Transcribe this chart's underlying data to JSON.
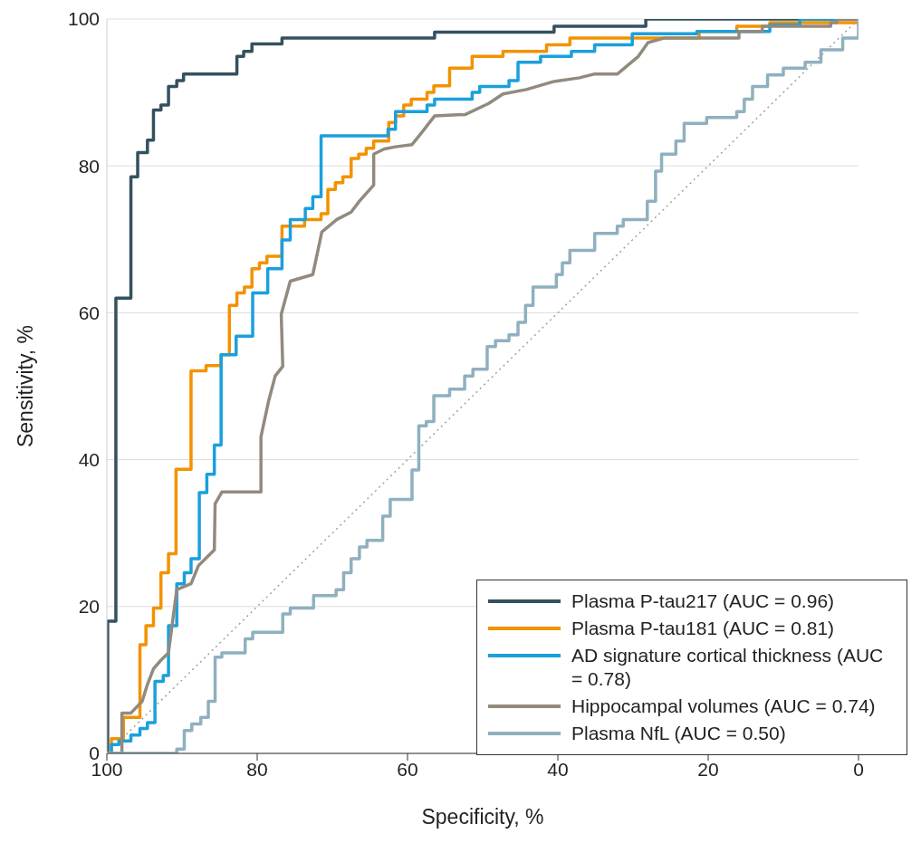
{
  "chart_data": {
    "type": "line",
    "xlabel": "Specificity, %",
    "ylabel": "Sensitivity, %",
    "xlim": [
      100,
      0
    ],
    "ylim": [
      0,
      100
    ],
    "xticks": [
      100,
      80,
      60,
      40,
      20,
      0
    ],
    "yticks": [
      0,
      20,
      40,
      60,
      80,
      100
    ],
    "grid": "y",
    "legend": "bottom right",
    "marker": "none",
    "line_style": "solid",
    "series": [
      {
        "color": "#a0a0a0",
        "line_style": "dotted",
        "x": [
          100,
          0
        ],
        "values": [
          0,
          100
        ]
      },
      {
        "name": "Plasma P-tau217 (AUC = 0.96)",
        "color": "#34515e",
        "x": [
          100,
          99.9,
          99.9,
          98.8,
          98.8,
          96.8,
          96.8,
          95.9,
          95.9,
          94.6,
          94.6,
          93.8,
          93.8,
          92.8,
          92.8,
          91.8,
          91.8,
          90.7,
          90.7,
          89.8,
          89.8,
          82.7,
          82.7,
          81.8,
          81.8,
          80.7,
          80.7,
          76.7,
          76.7,
          56.4,
          56.4,
          40.5,
          40.5,
          28.3,
          28.3,
          0
        ],
        "values": [
          0,
          0,
          18,
          18,
          62,
          62,
          78.5,
          78.5,
          81.8,
          81.8,
          83.5,
          83.5,
          87.6,
          87.6,
          88.3,
          88.3,
          90.8,
          90.8,
          91.6,
          91.6,
          92.5,
          92.5,
          94.9,
          94.9,
          95.6,
          95.6,
          96.6,
          96.6,
          97.4,
          97.4,
          98.2,
          98.2,
          99,
          99,
          100,
          100
        ]
      },
      {
        "name": "Plasma P-tau181 (AUC = 0.81)",
        "color": "#f39200",
        "x": [
          100,
          99.4,
          99.4,
          97.8,
          97.8,
          95.6,
          95.6,
          94.8,
          94.8,
          93.8,
          93.8,
          92.8,
          92.8,
          91.8,
          91.8,
          90.8,
          90.8,
          88.8,
          88.8,
          86.8,
          86.8,
          84.8,
          84.8,
          83.7,
          83.7,
          82.7,
          82.7,
          81.7,
          81.7,
          80.7,
          80.7,
          79.7,
          79.7,
          78.7,
          78.7,
          76.7,
          76.7,
          73.7,
          73.7,
          71.5,
          71.5,
          70.6,
          70.6,
          69.6,
          69.6,
          68.6,
          68.6,
          67.5,
          67.5,
          66.5,
          66.5,
          65.5,
          65.5,
          64.5,
          64.5,
          62.5,
          62.5,
          61.6,
          61.6,
          60.5,
          60.5,
          59.5,
          59.5,
          57.4,
          57.4,
          56.5,
          56.5,
          54.4,
          54.4,
          51.4,
          51.4,
          47.3,
          47.3,
          41.5,
          41.5,
          38.4,
          38.4,
          21.2,
          21.2,
          16.2,
          16.2,
          11.8,
          11.8,
          0
        ],
        "values": [
          0,
          0,
          2,
          2,
          4.9,
          4.9,
          14.8,
          14.8,
          17.4,
          17.4,
          19.8,
          19.8,
          24.6,
          24.6,
          27.2,
          27.2,
          38.7,
          38.7,
          52.1,
          52.1,
          52.8,
          52.8,
          54.3,
          54.3,
          61,
          61,
          62.7,
          62.7,
          63.5,
          63.5,
          66,
          66,
          66.8,
          66.8,
          67.7,
          67.7,
          71.8,
          71.8,
          72.7,
          72.7,
          73.5,
          73.5,
          76.8,
          76.8,
          77.7,
          77.7,
          78.5,
          78.5,
          81,
          81,
          81.6,
          81.6,
          82.4,
          82.4,
          83.4,
          83.4,
          85.9,
          85.9,
          86.8,
          86.8,
          88.3,
          88.3,
          89.1,
          89.1,
          90,
          90,
          90.9,
          90.9,
          93.3,
          93.3,
          94.9,
          94.9,
          95.6,
          95.6,
          96.5,
          96.5,
          97.4,
          97.4,
          98.3,
          98.3,
          99,
          99,
          99.5,
          99.5
        ]
      },
      {
        "name": "AD signature cortical thickness (AUC = 0.78)",
        "color": "#1aa0dc",
        "x": [
          100,
          99.4,
          99.4,
          98.4,
          98.4,
          96.8,
          96.8,
          95.6,
          95.6,
          94.6,
          94.6,
          93.6,
          93.6,
          92.5,
          92.5,
          91.8,
          91.8,
          90.7,
          90.7,
          89.7,
          89.7,
          88.8,
          88.8,
          87.7,
          87.7,
          86.7,
          86.7,
          85.7,
          85.7,
          84.8,
          84.8,
          82.8,
          82.8,
          80.6,
          80.6,
          78.6,
          78.6,
          76.7,
          76.7,
          75.6,
          75.6,
          73.6,
          73.6,
          72.6,
          72.6,
          71.5,
          71.5,
          62.6,
          62.6,
          61.6,
          61.6,
          57.4,
          57.4,
          56.4,
          56.4,
          51.4,
          51.4,
          50.4,
          50.4,
          46.5,
          46.5,
          45.3,
          45.3,
          42.3,
          42.3,
          38.2,
          38.2,
          35.1,
          35.1,
          30.1,
          30.1,
          21.5,
          21.5,
          11.8,
          11.8,
          7.8,
          7.8,
          0
        ],
        "values": [
          0,
          0,
          1.2,
          1.2,
          1.7,
          1.7,
          2.5,
          2.5,
          3.4,
          3.4,
          4.2,
          4.2,
          9.8,
          9.8,
          10.6,
          10.6,
          17.4,
          17.4,
          23.1,
          23.1,
          24.6,
          24.6,
          26.5,
          26.5,
          35.5,
          35.5,
          38,
          38,
          42,
          42,
          54.3,
          54.3,
          56.8,
          56.8,
          62.7,
          62.7,
          66,
          66,
          69.9,
          69.9,
          72.7,
          72.7,
          74.2,
          74.2,
          75.8,
          75.8,
          84.1,
          84.1,
          85,
          85,
          87.4,
          87.4,
          88.3,
          88.3,
          89.1,
          89.1,
          90,
          90,
          90.8,
          90.8,
          91.6,
          91.6,
          94.1,
          94.1,
          94.9,
          94.9,
          95.6,
          95.6,
          96.5,
          96.5,
          98,
          98,
          98.3,
          98.3,
          99.2,
          99.2,
          100,
          100
        ]
      },
      {
        "name": "Hippocampal volumes (AUC = 0.74)",
        "color": "#938a7e",
        "x": [
          100,
          98,
          98,
          96.8,
          95.3,
          94.6,
          93.8,
          92.8,
          91.8,
          90.7,
          88.8,
          87.8,
          85.7,
          85.6,
          84.7,
          79.5,
          79.5,
          78.5,
          77.6,
          76.6,
          76.8,
          75.6,
          72.6,
          71.4,
          69.4,
          67.5,
          66.4,
          64.5,
          64.5,
          63.1,
          61.6,
          59.4,
          58.3,
          56.4,
          52.3,
          49.2,
          47.3,
          44.2,
          40.5,
          37.1,
          35.2,
          32.1,
          29.3,
          28,
          25.9,
          15.9,
          15.9,
          12.8,
          12.8,
          3.7,
          3.7,
          2.9,
          2.9,
          0
        ],
        "values": [
          0,
          0,
          5.5,
          5.5,
          7.1,
          9.4,
          11.5,
          12.7,
          13.7,
          22.3,
          23.1,
          25.6,
          27.7,
          34,
          35.6,
          35.6,
          43.1,
          47.9,
          51.4,
          52.7,
          59.8,
          64.3,
          65.2,
          71,
          72.7,
          73.7,
          75.2,
          77.4,
          81.6,
          82.3,
          82.6,
          82.9,
          84.3,
          86.8,
          87,
          88.5,
          89.8,
          90.4,
          91.5,
          92,
          92.5,
          92.5,
          94.9,
          96.8,
          97.4,
          97.4,
          98.3,
          98.3,
          99,
          99,
          99.5,
          99.5,
          100,
          100
        ]
      },
      {
        "name": "Plasma NfL (AUC = 0.50)",
        "color": "#8fb0bf",
        "x": [
          100,
          90.7,
          90.7,
          89.7,
          89.7,
          88.7,
          88.7,
          87.5,
          87.5,
          86.5,
          86.5,
          85.6,
          85.6,
          84.7,
          84.7,
          81.6,
          81.6,
          80.6,
          80.6,
          76.6,
          76.6,
          75.6,
          75.6,
          72.5,
          72.5,
          69.5,
          69.5,
          68.5,
          68.5,
          67.5,
          67.5,
          66.4,
          66.4,
          65.4,
          65.4,
          63.3,
          63.3,
          62.3,
          62.3,
          59.4,
          59.4,
          58.5,
          58.5,
          57.5,
          57.5,
          56.5,
          56.5,
          54.4,
          54.4,
          52.4,
          52.4,
          51.3,
          51.3,
          49.4,
          49.4,
          48.3,
          48.3,
          46.5,
          46.5,
          45.3,
          45.3,
          44.3,
          44.3,
          43.3,
          43.3,
          40.2,
          40.2,
          39.4,
          39.4,
          38.4,
          38.4,
          35.1,
          35.1,
          32.1,
          32.1,
          31.3,
          31.3,
          28.1,
          28.1,
          27,
          27,
          26.2,
          26.2,
          24.3,
          24.3,
          23.2,
          23.2,
          20.2,
          20.2,
          16.2,
          16.2,
          15.2,
          15.2,
          14.1,
          14.1,
          12.1,
          12.1,
          10,
          10,
          7.1,
          7.1,
          5,
          5,
          2.1,
          2.1,
          0,
          0
        ],
        "values": [
          0,
          0,
          0.6,
          0.6,
          3.1,
          3.1,
          4,
          4,
          4.9,
          4.9,
          7.1,
          7.1,
          13.1,
          13.1,
          13.7,
          13.7,
          15.6,
          15.6,
          16.5,
          16.5,
          19,
          19,
          19.8,
          19.8,
          21.5,
          21.5,
          22.3,
          22.3,
          24.6,
          24.6,
          26.5,
          26.5,
          28.1,
          28.1,
          29,
          29,
          32.3,
          32.3,
          34.6,
          34.6,
          38.6,
          38.6,
          44.6,
          44.6,
          45.2,
          45.2,
          48.7,
          48.7,
          49.6,
          49.6,
          51.4,
          51.4,
          52.3,
          52.3,
          55.4,
          55.4,
          56.2,
          56.2,
          57,
          57,
          58.7,
          58.7,
          61,
          61,
          63.5,
          63.5,
          65.2,
          65.2,
          66.8,
          66.8,
          68.5,
          68.5,
          70.8,
          70.8,
          71.8,
          71.8,
          72.7,
          72.7,
          75.2,
          75.2,
          79.3,
          79.3,
          81.6,
          81.6,
          83.4,
          83.4,
          85.8,
          85.8,
          86.6,
          86.6,
          87.4,
          87.4,
          89.1,
          89.1,
          90.8,
          90.8,
          92.4,
          92.4,
          93.3,
          93.3,
          94.1,
          94.1,
          95.8,
          95.8,
          97.4,
          97.4,
          100
        ]
      }
    ]
  }
}
